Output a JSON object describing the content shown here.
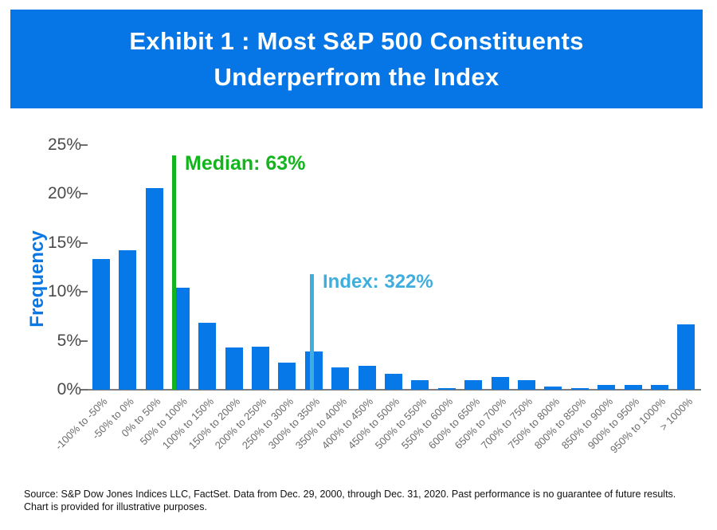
{
  "banner": {
    "title_line1": "Exhibit 1 : Most S&P 500 Constituents",
    "title_line2": "Underperfrom the Index"
  },
  "colors": {
    "banner_blue": "#0676e7",
    "bar_blue": "#0778e8",
    "median_green": "#14b41e",
    "index_blue": "#3fadde",
    "axis_gray": "#7d7d7d",
    "ytick_gray": "#4a4a4a",
    "xtick_gray": "#6b6b6b"
  },
  "chart_data": {
    "type": "bar",
    "title": "Exhibit 1 : Most S&P 500 Constituents Underperfrom the Index",
    "xlabel": "",
    "ylabel": "Frequency",
    "ylim": [
      0,
      25
    ],
    "ytick_step": 5,
    "ytick_labels": [
      "25%",
      "20%",
      "15%",
      "10%",
      "5%",
      "0%"
    ],
    "grid": false,
    "legend_position": "none",
    "categories": [
      "-100% to -50%",
      "-50% to 0%",
      "0% to 50%",
      "50% to 100%",
      "100% to 150%",
      "150% to 200%",
      "200% to 250%",
      "250% to 300%",
      "300% to 350%",
      "350% to 400%",
      "400% to 450%",
      "450% to 500%",
      "500% to 550%",
      "550% to 600%",
      "600% to 650%",
      "650% to 700%",
      "700% to 750%",
      "750% to 800%",
      "800% to 850%",
      "850% to 900%",
      "900% to 950%",
      "950% to 1000%",
      "> 1000%"
    ],
    "values": [
      13.3,
      14.2,
      20.6,
      10.4,
      6.8,
      4.3,
      4.4,
      2.8,
      3.9,
      2.3,
      2.4,
      1.6,
      1.0,
      0.2,
      1.0,
      1.3,
      1.0,
      0.3,
      0.15,
      0.45,
      0.45,
      0.45,
      6.7
    ],
    "annotations": [
      {
        "id": "median",
        "label": "Median: 63%",
        "value_pct": 63,
        "line_top_frequency_pct": 23.9,
        "color": "#14b41e"
      },
      {
        "id": "index",
        "label": "Index: 322%",
        "value_pct": 322,
        "line_top_frequency_pct": 11.8,
        "color": "#3fadde"
      }
    ]
  },
  "footer": {
    "line1": "Source: S&P Dow Jones Indices LLC, FactSet. Data from Dec. 29, 2000, through Dec. 31, 2020. Past performance is no guarantee of future results.",
    "line2": "Chart is provided for illustrative purposes."
  }
}
